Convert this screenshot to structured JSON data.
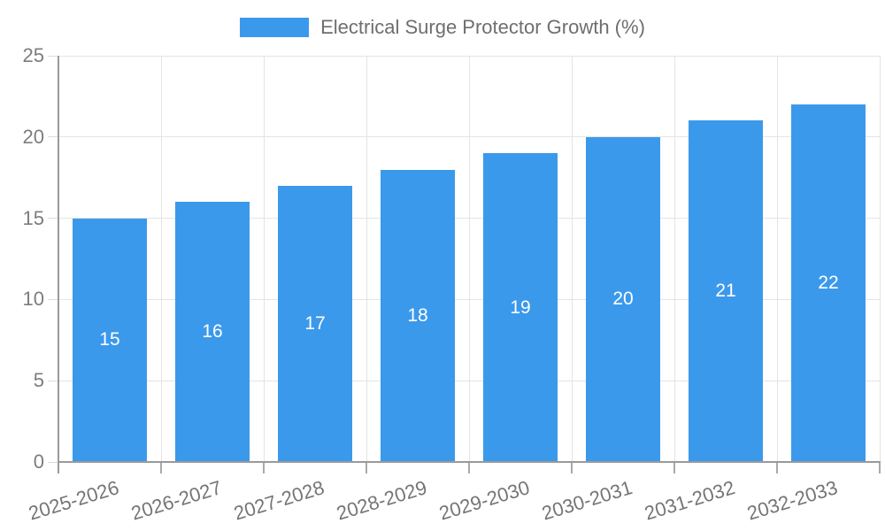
{
  "chart_data": {
    "type": "bar",
    "title": "Electrical Surge Protector Growth (%)",
    "categories": [
      "2025-2026",
      "2026-2027",
      "2027-2028",
      "2028-2029",
      "2029-2030",
      "2030-2031",
      "2031-2032",
      "2032-2033"
    ],
    "values": [
      15,
      16,
      17,
      18,
      19,
      20,
      21,
      22
    ],
    "xlabel": "",
    "ylabel": "",
    "ylim": [
      0,
      25
    ],
    "yticks": [
      0,
      5,
      10,
      15,
      20,
      25
    ],
    "grid": true,
    "legend_position": "top-center",
    "bar_color": "#3b99ec",
    "bar_label_color": "#ffffff",
    "grid_color": "#e4e4e4",
    "axis_color": "#9a9a9a",
    "tick_label_color": "#7d7d7d",
    "title_color": "#6e6e6e"
  }
}
